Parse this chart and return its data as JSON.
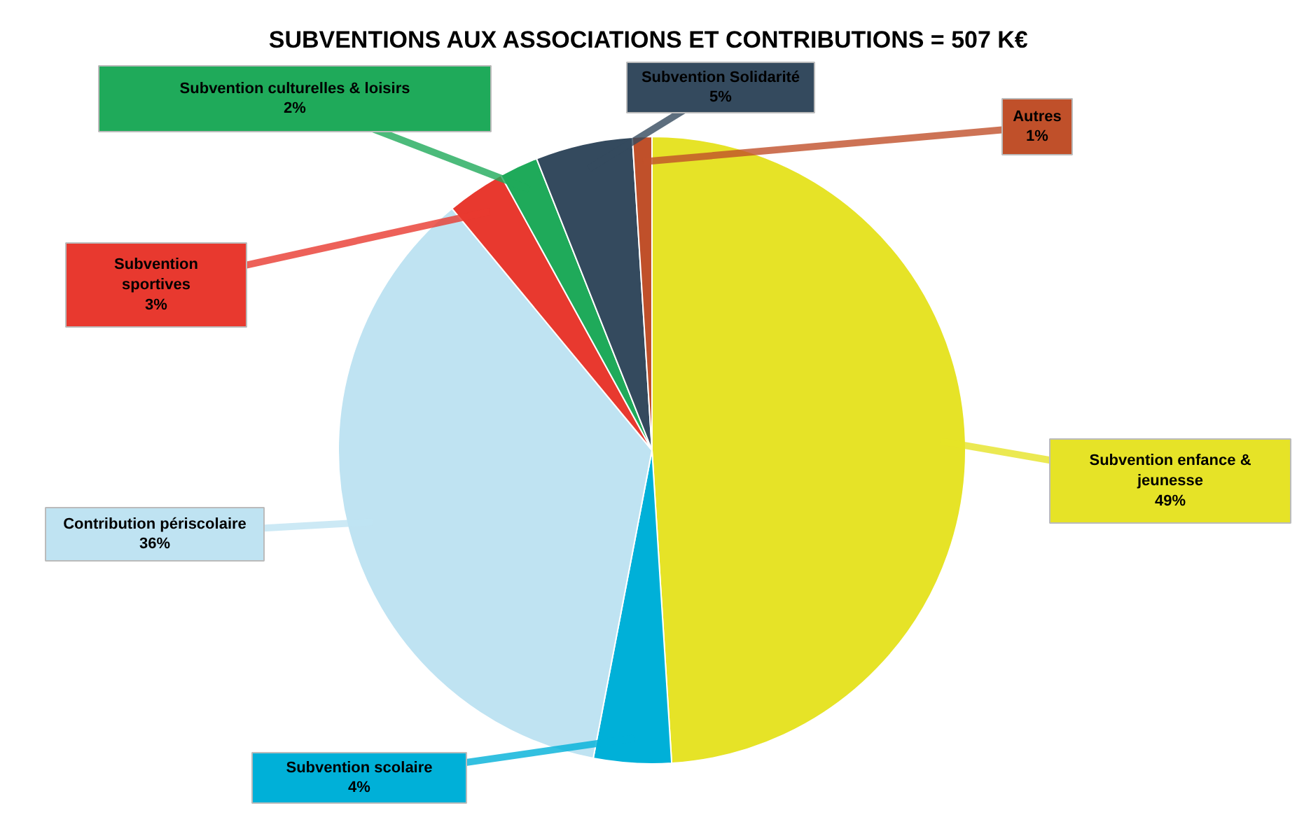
{
  "chart_data": {
    "type": "pie",
    "title": "SUBVENTIONS AUX ASSOCIATIONS ET CONTRIBUTIONS = 507 K€",
    "categories": [
      "Subvention enfance & jeunesse",
      "Subvention scolaire",
      "Contribution périscolaire",
      "Subvention sportives",
      "Subvention culturelles & loisirs",
      "Subvention Solidarité",
      "Autres"
    ],
    "values": [
      49,
      4,
      36,
      3,
      2,
      5,
      1
    ],
    "value_labels": [
      "49%",
      "4%",
      "36%",
      "3%",
      "2%",
      "5%",
      "1%"
    ],
    "colors": [
      "#e6e327",
      "#00b0d8",
      "#bfe3f2",
      "#e8392f",
      "#1faa5a",
      "#344a5e",
      "#c0502a"
    ]
  }
}
